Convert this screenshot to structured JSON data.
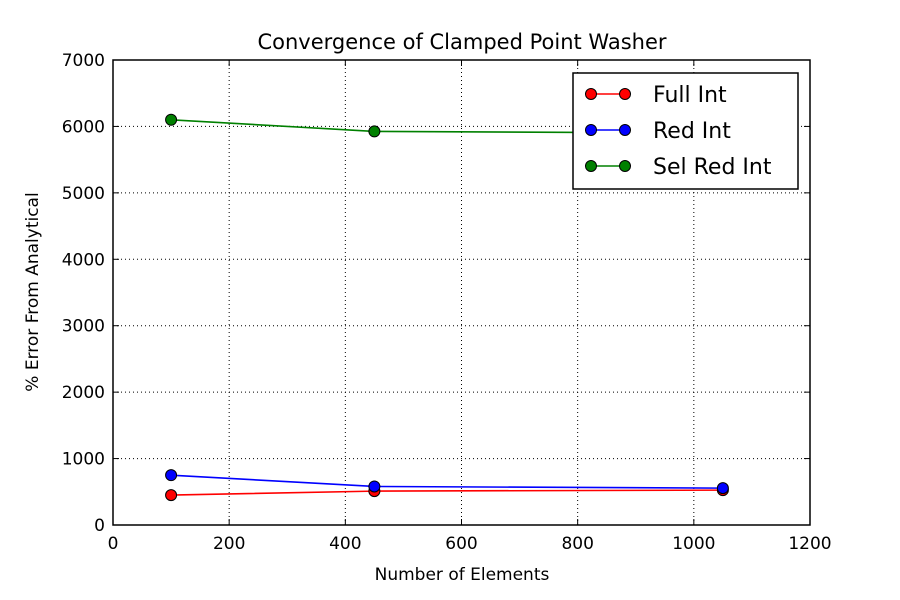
{
  "chart_data": {
    "type": "line",
    "title": "Convergence of Clamped Point Washer",
    "xlabel": "Number of Elements",
    "ylabel": "% Error From Analytical",
    "xlim": [
      0,
      1200
    ],
    "ylim": [
      0,
      7000
    ],
    "xticks": [
      0,
      200,
      400,
      600,
      800,
      1000,
      1200
    ],
    "yticks": [
      0,
      1000,
      2000,
      3000,
      4000,
      5000,
      6000,
      7000
    ],
    "grid": true,
    "legend_position": "top-right",
    "series": [
      {
        "name": "Full Int",
        "color": "#ff0000",
        "x": [
          100,
          450,
          1050
        ],
        "y": [
          450,
          510,
          525
        ]
      },
      {
        "name": "Red Int",
        "color": "#0000ff",
        "x": [
          100,
          450,
          1050
        ],
        "y": [
          750,
          580,
          555
        ]
      },
      {
        "name": "Sel Red Int",
        "color": "#008000",
        "x": [
          100,
          450,
          1050
        ],
        "y": [
          6100,
          5925,
          5900
        ]
      }
    ]
  }
}
